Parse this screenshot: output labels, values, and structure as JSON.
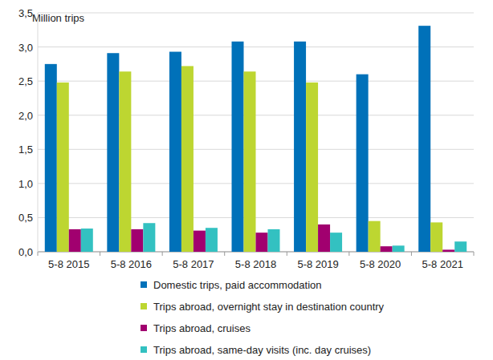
{
  "chart_data": {
    "type": "bar",
    "y_label": "Million trips",
    "categories": [
      "5-8 2015",
      "5-8 2016",
      "5-8 2017",
      "5-8 2018",
      "5-8 2019",
      "5-8 2020",
      "5-8 2021"
    ],
    "series": [
      {
        "name": "Domestic trips, paid accommodation",
        "color": "#0071b9",
        "values": [
          2.75,
          2.91,
          2.93,
          3.08,
          3.08,
          2.6,
          3.31
        ]
      },
      {
        "name": "Trips abroad, overnight stay in destination country",
        "color": "#bdd631",
        "values": [
          2.48,
          2.64,
          2.72,
          2.64,
          2.48,
          0.45,
          0.43
        ]
      },
      {
        "name": "Trips abroad, cruises",
        "color": "#a1006f",
        "values": [
          0.33,
          0.33,
          0.31,
          0.28,
          0.4,
          0.08,
          0.03
        ]
      },
      {
        "name": "Trips abroad, same-day visits (inc. day cruises)",
        "color": "#33c1c1",
        "values": [
          0.34,
          0.42,
          0.35,
          0.33,
          0.28,
          0.09,
          0.15
        ]
      }
    ],
    "ylim": [
      0,
      3.5
    ],
    "yticks": [
      {
        "value": 0,
        "label": "0,0"
      },
      {
        "value": 0.5,
        "label": "0,5"
      },
      {
        "value": 1,
        "label": "1,0"
      },
      {
        "value": 1.5,
        "label": "1,5"
      },
      {
        "value": 2,
        "label": "2,0"
      },
      {
        "value": 2.5,
        "label": "2,5"
      },
      {
        "value": 3,
        "label": "3,0"
      },
      {
        "value": 3.5,
        "label": "3,5"
      }
    ],
    "grid": true,
    "legend": "bottom"
  }
}
